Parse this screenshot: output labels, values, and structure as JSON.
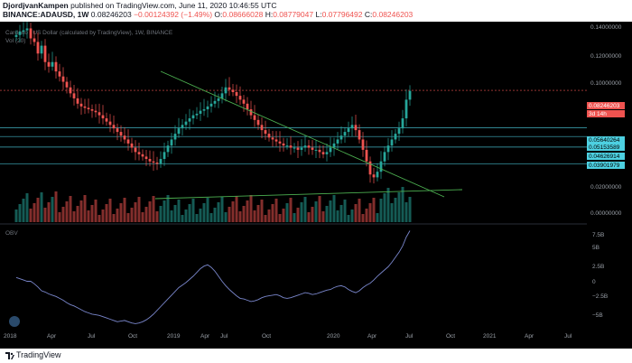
{
  "header": {
    "author": "DjordjvanKampen",
    "published": "published on TradingView.com, June 11, 2020 10:46:55 UTC",
    "symbol": "BINANCE:ADAUSD, 1W",
    "last": "0.08246203",
    "change": "−0.00124392 (−1.49%)",
    "o_label": "O:",
    "o_value": "0.08666028",
    "h_label": "H:",
    "h_value": "0.08779047",
    "l_label": "L:",
    "l_value": "0.07796492",
    "c_label": "C:",
    "c_value": "0.08246203"
  },
  "legend": {
    "main": "Cardano / US Dollar (calculated by TradingView), 1W, BINANCE",
    "vol": "Vol (20)",
    "obv": "OBV"
  },
  "colors": {
    "up": "#26a69a",
    "down": "#ef5350",
    "trendline": "#4caf50",
    "hline": "#4dd0e1",
    "obv_line": "#7986cb",
    "price_line": "#ef5350"
  },
  "price_axis": {
    "ticks": [
      "0.14000000",
      "0.12000000",
      "0.10000000",
      "0.02000000",
      "0.00000000"
    ],
    "tags": [
      {
        "label": "0.08246203",
        "kind": "last"
      },
      {
        "label": "3d 14h",
        "kind": "countdown"
      },
      {
        "label": "0.05640264",
        "kind": "level"
      },
      {
        "label": "0.05153589",
        "kind": "level"
      },
      {
        "label": "0.04626914",
        "kind": "level"
      },
      {
        "label": "0.03901979",
        "kind": "level"
      }
    ]
  },
  "obv_axis": {
    "ticks": [
      "7.5B",
      "5B",
      "2.5B",
      "0",
      "−2.5B",
      "−5B"
    ]
  },
  "time_axis": {
    "labels": [
      "2018",
      "Apr",
      "Jul",
      "Oct",
      "2019",
      "Apr",
      "Jul",
      "Oct",
      "2020",
      "Apr",
      "Jul",
      "Oct",
      "2021",
      "Apr",
      "Jul"
    ]
  },
  "footer": {
    "brand": "TradingView"
  },
  "chart_data": {
    "type": "candlestick",
    "title": "Cardano / US Dollar (calculated by TradingView), 1W, BINANCE",
    "interval": "1W",
    "ylim": [
      0,
      0.15
    ],
    "y_scale": "log",
    "horizontal_levels": [
      0.05640264,
      0.05153589,
      0.04626914,
      0.03901979
    ],
    "last_price": 0.08246203,
    "close_series_approx": [
      0.145,
      0.15,
      0.152,
      0.155,
      0.14,
      0.135,
      0.12,
      0.13,
      0.11,
      0.105,
      0.11,
      0.1,
      0.095,
      0.09,
      0.085,
      0.08,
      0.076,
      0.072,
      0.07,
      0.069,
      0.068,
      0.067,
      0.066,
      0.064,
      0.062,
      0.06,
      0.058,
      0.056,
      0.054,
      0.052,
      0.05,
      0.048,
      0.046,
      0.044,
      0.043,
      0.042,
      0.041,
      0.04,
      0.0395,
      0.039,
      0.041,
      0.044,
      0.047,
      0.05,
      0.053,
      0.056,
      0.058,
      0.06,
      0.062,
      0.064,
      0.065,
      0.067,
      0.068,
      0.07,
      0.072,
      0.074,
      0.076,
      0.08,
      0.085,
      0.083,
      0.081,
      0.078,
      0.075,
      0.072,
      0.068,
      0.064,
      0.061,
      0.058,
      0.055,
      0.053,
      0.051,
      0.05,
      0.049,
      0.048,
      0.047,
      0.047,
      0.046,
      0.046,
      0.045,
      0.046,
      0.047,
      0.046,
      0.045,
      0.045,
      0.044,
      0.043,
      0.044,
      0.046,
      0.048,
      0.05,
      0.052,
      0.054,
      0.056,
      0.058,
      0.055,
      0.05,
      0.045,
      0.04,
      0.035,
      0.034,
      0.036,
      0.04,
      0.044,
      0.047,
      0.05,
      0.053,
      0.056,
      0.062,
      0.075,
      0.082
    ],
    "obv_series_approx": [
      0.6,
      0.4,
      0.2,
      0.0,
      0.0,
      -0.4,
      -0.9,
      -1.5,
      -1.7,
      -2.0,
      -2.2,
      -2.4,
      -2.7,
      -3.0,
      -3.4,
      -3.7,
      -3.9,
      -4.2,
      -4.5,
      -4.8,
      -5.0,
      -5.2,
      -5.3,
      -5.4,
      -5.6,
      -5.8,
      -6.0,
      -6.2,
      -6.4,
      -6.3,
      -6.2,
      -6.4,
      -6.6,
      -6.7,
      -6.6,
      -6.4,
      -6.1,
      -5.7,
      -5.2,
      -4.6,
      -4.0,
      -3.4,
      -2.8,
      -2.2,
      -1.6,
      -1.0,
      -0.6,
      -0.2,
      0.3,
      0.8,
      1.4,
      2.0,
      2.4,
      2.6,
      2.2,
      1.6,
      0.8,
      0.0,
      -0.7,
      -1.3,
      -1.8,
      -2.3,
      -2.7,
      -2.8,
      -3.0,
      -3.2,
      -3.1,
      -2.9,
      -2.6,
      -2.4,
      -2.3,
      -2.2,
      -2.1,
      -2.3,
      -2.6,
      -2.7,
      -2.6,
      -2.4,
      -2.2,
      -2.0,
      -1.8,
      -1.9,
      -2.1,
      -2.0,
      -1.8,
      -1.6,
      -1.4,
      -1.3,
      -1.0,
      -0.8,
      -0.7,
      -0.9,
      -1.3,
      -1.6,
      -1.8,
      -1.5,
      -1.0,
      -0.6,
      -0.3,
      0.2,
      0.8,
      1.3,
      1.8,
      2.3,
      3.0,
      3.8,
      4.6,
      5.6,
      7.0,
      8.0
    ]
  }
}
